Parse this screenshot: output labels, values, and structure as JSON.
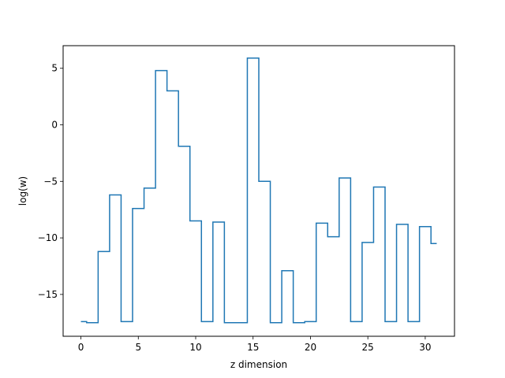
{
  "chart_data": {
    "type": "line",
    "drawstyle": "steps-mid",
    "title": "",
    "xlabel": "z dimension",
    "ylabel": "log(w)",
    "xlim": [
      -1.55,
      32.55
    ],
    "ylim": [
      -18.7,
      7.0
    ],
    "xticks": [
      0,
      5,
      10,
      15,
      20,
      25,
      30
    ],
    "yticks": [
      -15,
      -10,
      -5,
      0,
      5
    ],
    "ytick_labels": [
      "−15",
      "−10",
      "−5",
      "0",
      "5"
    ],
    "grid": false,
    "legend": "none",
    "series": [
      {
        "color": "#1f77b4",
        "x": [
          0,
          1,
          2,
          3,
          4,
          5,
          6,
          7,
          8,
          9,
          10,
          11,
          12,
          13,
          14,
          15,
          16,
          17,
          18,
          19,
          20,
          21,
          22,
          23,
          24,
          25,
          26,
          27,
          28,
          29,
          30,
          31
        ],
        "y": [
          -17.4,
          -17.5,
          -11.2,
          -6.2,
          -17.4,
          -7.4,
          -5.6,
          4.8,
          3.0,
          -1.9,
          -8.5,
          -17.4,
          -8.6,
          -17.5,
          -17.5,
          5.9,
          -5.0,
          -17.5,
          -12.9,
          -17.5,
          -17.4,
          -8.7,
          -9.9,
          -4.7,
          -17.4,
          -10.4,
          -5.5,
          -17.4,
          -8.8,
          -17.4,
          -9.0,
          -10.5
        ]
      }
    ]
  }
}
